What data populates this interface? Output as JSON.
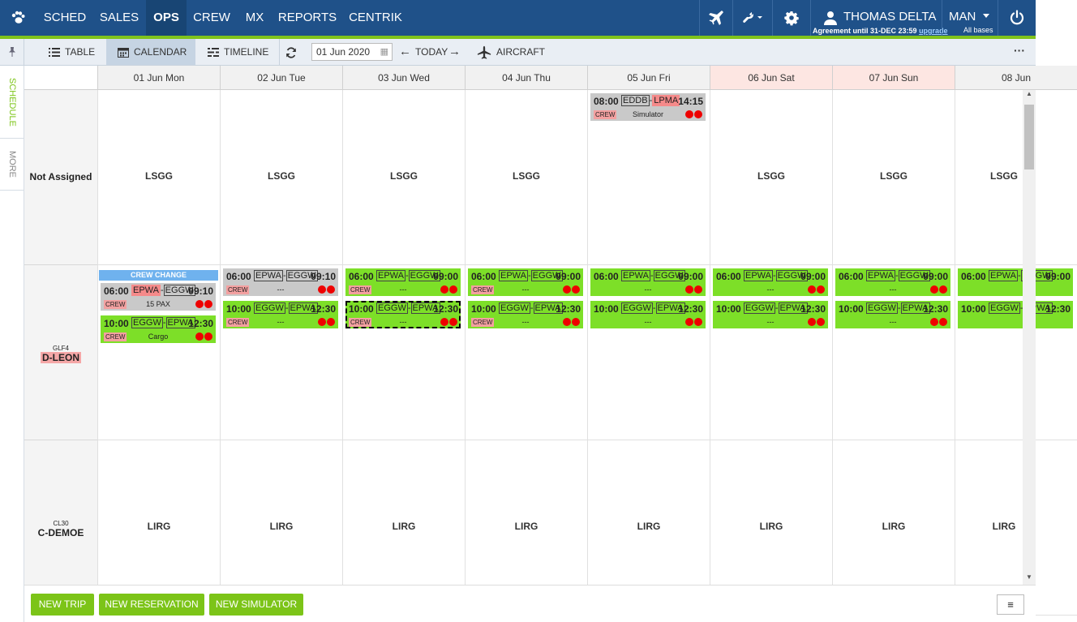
{
  "nav": {
    "items": [
      "SCHED",
      "SALES",
      "OPS",
      "CREW",
      "MX",
      "REPORTS",
      "CENTRIK"
    ],
    "user_name": "THOMAS DELTA",
    "agreement": "Agreement until 31-DEC 23:59",
    "upgrade": "upgrade",
    "base": "MAN",
    "base_sub": "All bases"
  },
  "toolbar": {
    "table": "TABLE",
    "calendar": "CALENDAR",
    "timeline": "TIMELINE",
    "date": "01 Jun 2020",
    "today": "TODAY",
    "aircraft": "AIRCRAFT"
  },
  "side_tabs": {
    "schedule": "SCHEDULE",
    "more": "MORE"
  },
  "days": [
    "01 Jun Mon",
    "02 Jun Tue",
    "03 Jun Wed",
    "04 Jun Thu",
    "05 Jun Fri",
    "06 Jun Sat",
    "07 Jun Sun",
    "08 Jun"
  ],
  "rows": {
    "not_assigned": "Not Assigned",
    "leon_type": "GLF4",
    "leon_reg": "D-LEON",
    "demoe_type": "CL30",
    "demoe_reg": "C-DEMOE"
  },
  "bases": {
    "lsgg": "LSGG",
    "lirg": "LIRG"
  },
  "crew_change": "CREW CHANGE",
  "cards": {
    "crew": "CREW",
    "sim": {
      "dep": "08:00",
      "from": "EDDB",
      "to": "LPMA",
      "arr": "14:15",
      "info": "Simulator"
    },
    "mon1": {
      "dep": "06:00",
      "from": "EPWA",
      "to": "EGGW",
      "arr": "09:10",
      "info": "15 PAX"
    },
    "mon2": {
      "dep": "10:00",
      "from": "EGGW",
      "to": "EPWA",
      "arr": "12:30",
      "info": "Cargo"
    },
    "tue1": {
      "dep": "06:00",
      "from": "EPWA",
      "to": "EGGW",
      "arr": "09:10",
      "info": "---"
    },
    "out": {
      "dep": "06:00",
      "from": "EPWA",
      "to": "EGGW",
      "arr": "09:00",
      "info": "---"
    },
    "back": {
      "dep": "10:00",
      "from": "EGGW",
      "to": "EPWA",
      "arr": "12:30",
      "info": "---"
    }
  },
  "bottom": {
    "new_trip": "NEW TRIP",
    "new_reservation": "NEW RESERVATION",
    "new_simulator": "NEW SIMULATOR",
    "menu": "≡"
  },
  "colors": {
    "nav_bg": "#1f5189",
    "accent": "#7fc31c",
    "flight_green": "#7ddf28",
    "weekend": "#fde6e2"
  }
}
